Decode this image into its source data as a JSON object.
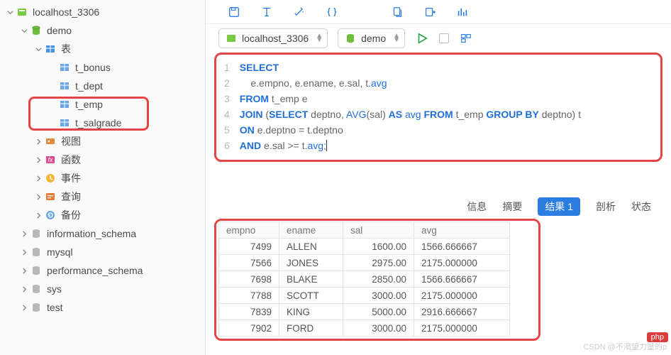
{
  "connection": {
    "name": "localhost_3306"
  },
  "db": {
    "name": "demo"
  },
  "tree": {
    "tables_label": "表",
    "tables": [
      "t_bonus",
      "t_dept",
      "t_emp",
      "t_salgrade"
    ],
    "views": "视图",
    "functions": "函数",
    "events": "事件",
    "queries": "查询",
    "backups": "备份",
    "schemas": [
      "information_schema",
      "mysql",
      "performance_schema",
      "sys",
      "test"
    ]
  },
  "selectors": {
    "conn": "localhost_3306",
    "db": "demo"
  },
  "tabs": {
    "info": "信息",
    "summary": "摘要",
    "result": "结果 1",
    "analyze": "剖析",
    "status": "状态"
  },
  "sql": {
    "l1a": "SELECT",
    "l2a": "    e.empno, e.ename, e.sal, t.",
    "l2b": "avg",
    "l3a": "FROM",
    "l3b": " t_emp e",
    "l4a": "JOIN",
    "l4b": " (",
    "l4c": "SELECT",
    "l4d": " deptno, ",
    "l4e": "AVG",
    "l4f": "(sal) ",
    "l4g": "AS",
    "l4h": " ",
    "l4i": "avg",
    "l4j": " ",
    "l4k": "FROM",
    "l4l": " t_emp ",
    "l4m": "GROUP BY",
    "l4n": " deptno) t",
    "l5a": "ON",
    "l5b": " e.deptno = t.deptno",
    "l6a": "AND",
    "l6b": " e.sal >= t.",
    "l6c": "avg",
    "l6d": ";"
  },
  "cols": {
    "empno": "empno",
    "ename": "ename",
    "sal": "sal",
    "avg": "avg"
  },
  "rows": [
    {
      "empno": "7499",
      "ename": "ALLEN",
      "sal": "1600.00",
      "avg": "1566.666667"
    },
    {
      "empno": "7566",
      "ename": "JONES",
      "sal": "2975.00",
      "avg": "2175.000000"
    },
    {
      "empno": "7698",
      "ename": "BLAKE",
      "sal": "2850.00",
      "avg": "1566.666667"
    },
    {
      "empno": "7788",
      "ename": "SCOTT",
      "sal": "3000.00",
      "avg": "2175.000000"
    },
    {
      "empno": "7839",
      "ename": "KING",
      "sal": "5000.00",
      "avg": "2916.666667"
    },
    {
      "empno": "7902",
      "ename": "FORD",
      "sal": "3000.00",
      "avg": "2175.000000"
    }
  ],
  "watermark": "CSDN @不渴望力量的p",
  "badge": "php"
}
